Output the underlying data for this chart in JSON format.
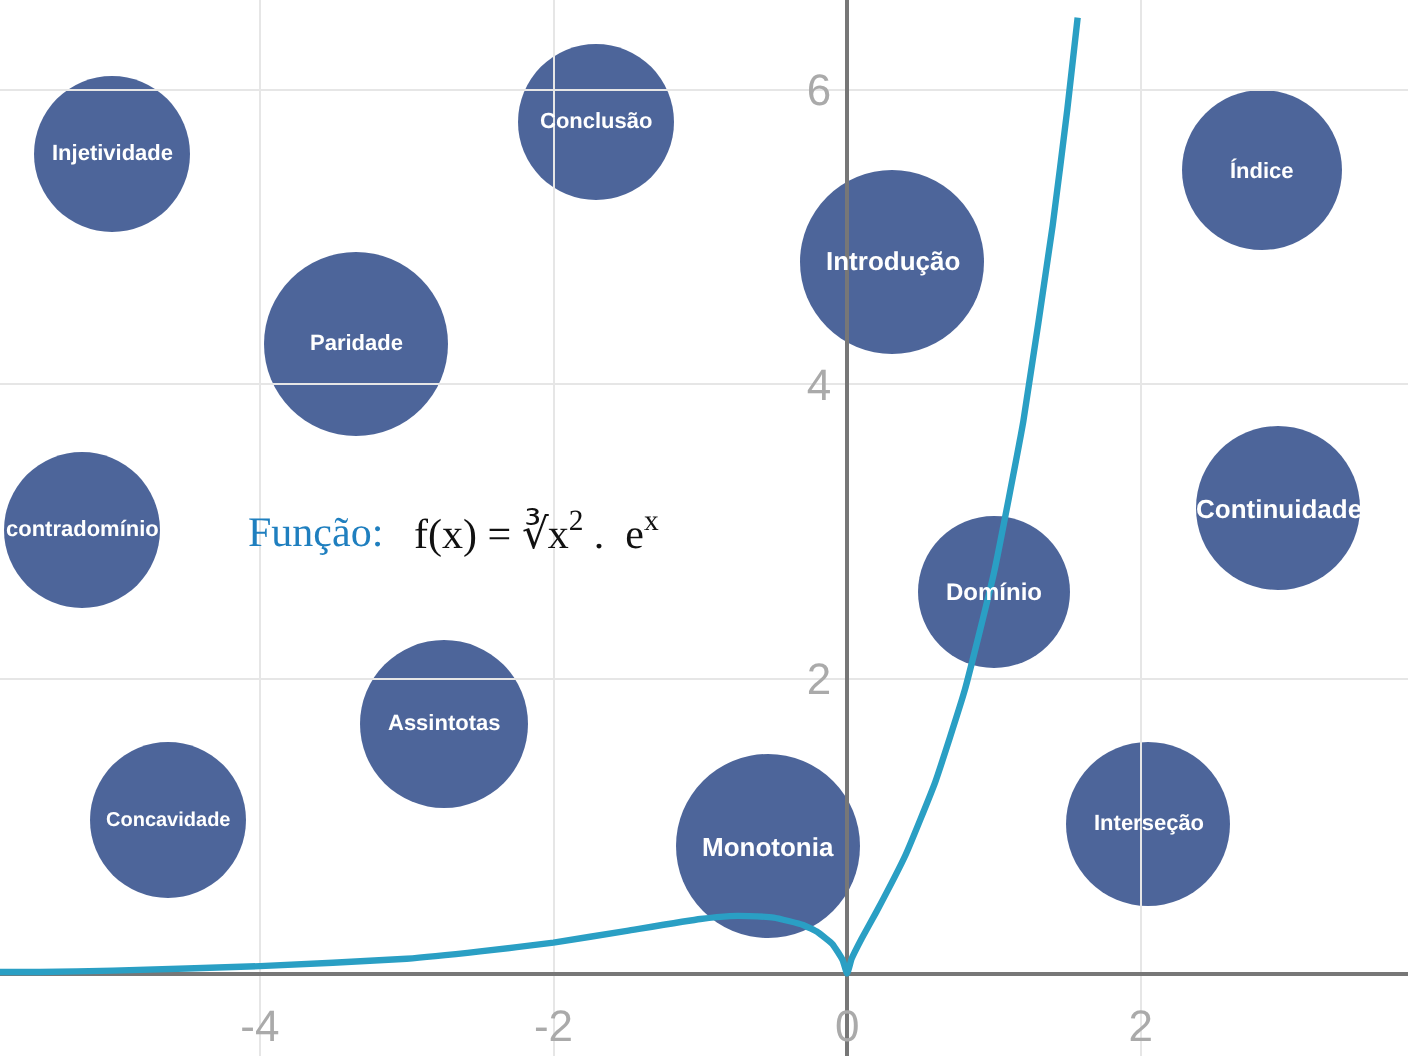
{
  "chart_data": {
    "type": "line",
    "x": [
      -5.77,
      -5.5,
      -5,
      -4,
      -3,
      -2.5,
      -2,
      -1.5,
      -1,
      -0.8,
      -0.67,
      -0.5,
      -0.3,
      -0.2,
      -0.1,
      -0.03,
      0,
      0.03,
      0.1,
      0.2,
      0.4,
      0.6,
      0.8,
      1,
      1.2,
      1.4,
      1.5,
      1.57
    ],
    "series": [
      {
        "color": "#2a9fc4",
        "values": [
          0.01,
          0.01,
          0.02,
          0.05,
          0.1,
          0.15,
          0.21,
          0.29,
          0.37,
          0.39,
          0.39,
          0.38,
          0.33,
          0.28,
          0.2,
          0.09,
          0,
          0.1,
          0.24,
          0.42,
          0.81,
          1.3,
          1.92,
          2.72,
          3.75,
          5.08,
          5.87,
          6.49
        ]
      }
    ],
    "xlim": [
      -5.77,
      3.82
    ],
    "ylim": [
      -0.56,
      6.61
    ],
    "xticks": [
      -4,
      -2,
      0,
      2
    ],
    "yticks": [
      2,
      4,
      6
    ],
    "grid": true,
    "line_style": "solid",
    "marker": "none",
    "annotations": [
      "Função:",
      "f(x) = ∛x$^{2}$ .  e$^{x}$",
      "Injetividade",
      "Conclusão",
      "Índice",
      "Introdução",
      "Paridade",
      "contradomínio",
      "Continuidade",
      "Domínio",
      "Assintotas",
      "Concavidade",
      "Monotonia",
      "Interseção"
    ]
  }
}
